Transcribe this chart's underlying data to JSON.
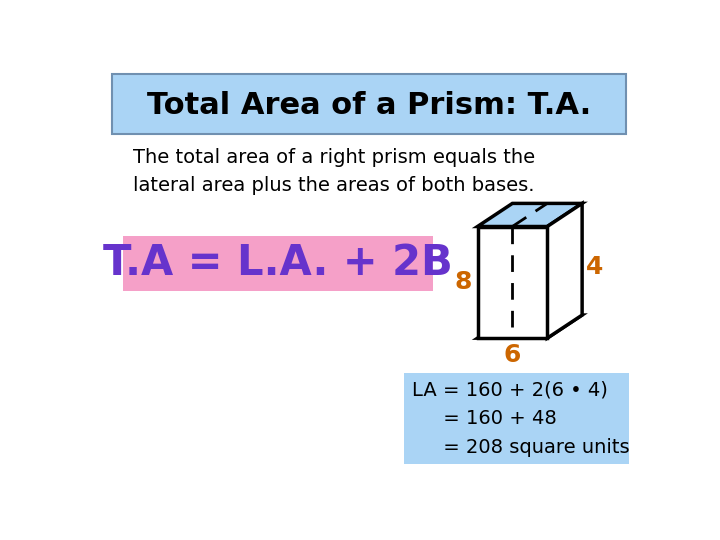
{
  "title": "Total Area of a Prism: T.A.",
  "title_bg": "#aad4f5",
  "body_bg": "#ffffff",
  "subtitle": "The total area of a right prism equals the\nlateral area plus the areas of both bases.",
  "formula": "T.A = L.A. + 2B",
  "formula_bg": "#f5a0c8",
  "formula_color": "#6633cc",
  "dimension_color": "#cc6600",
  "dim_8": "8",
  "dim_6": "6",
  "dim_4": "4",
  "calc_text": "LA = 160 + 2(6 • 4)\n     = 160 + 48\n     = 208 square units",
  "calc_bg": "#aad4f5",
  "prism_face_color": "#aad4f5",
  "prism_side_color": "#ffffff",
  "prism_line_color": "#000000"
}
